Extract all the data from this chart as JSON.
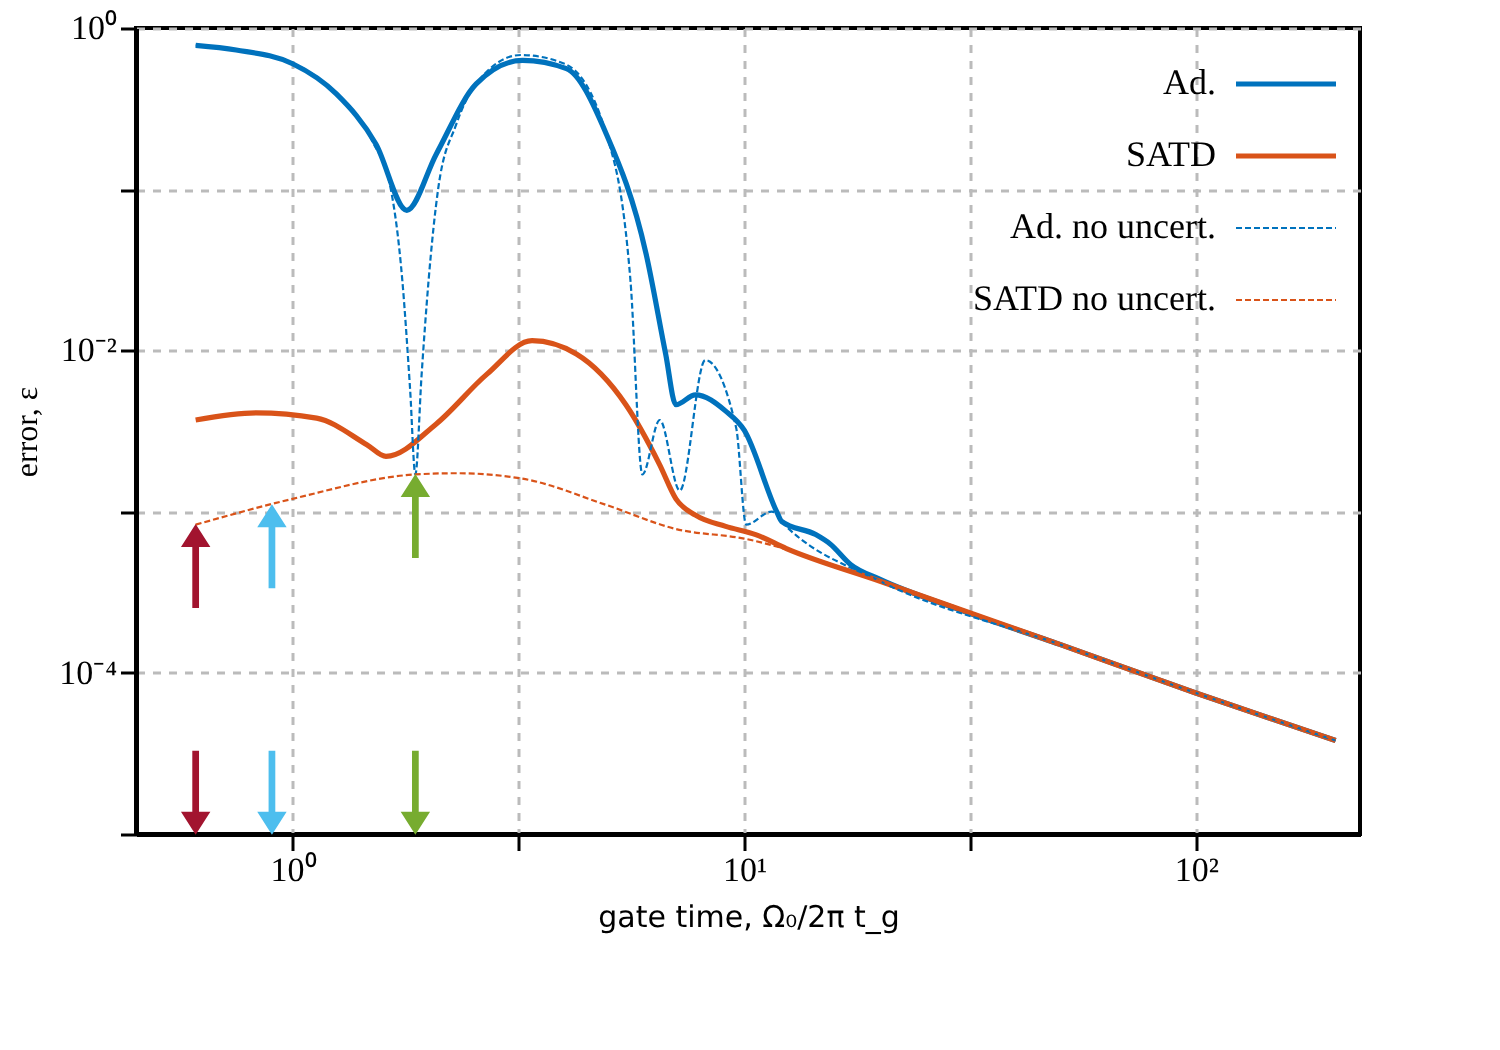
{
  "chart_data": {
    "type": "line",
    "xlabel": "gate time, Ω₀/2π t_g",
    "ylabel": "error, ε",
    "log": "xy",
    "grid": true,
    "legend": "top right",
    "xlim": [
      0.45,
      231
    ],
    "ylim": [
      1e-05,
      1
    ],
    "xticks": [
      {
        "value": 1,
        "label": "10⁰"
      },
      {
        "value": 3.1623,
        "label": null
      },
      {
        "value": 10,
        "label": "10¹"
      },
      {
        "value": 31.623,
        "label": null
      },
      {
        "value": 100,
        "label": "10²"
      }
    ],
    "yticks": [
      {
        "value": 1,
        "label": "10⁰"
      },
      {
        "value": 0.1,
        "label": null
      },
      {
        "value": 0.01,
        "label": "10⁻²"
      },
      {
        "value": 0.001,
        "label": null
      },
      {
        "value": 0.0001,
        "label": "10⁻⁴"
      },
      {
        "value": 1e-05,
        "label": null
      }
    ],
    "series": [
      {
        "name": "Ad.",
        "color": "#0072bd",
        "line_style": "solid",
        "x": [
          0.61,
          0.75,
          1,
          1.25,
          1.53,
          1.79,
          2.08,
          2.55,
          3.23,
          4.04,
          4.95,
          6.06,
          6.7,
          7.06,
          7.8,
          9.1,
          10,
          11.8,
          12.1,
          14.4,
          15.5,
          17.2,
          20,
          29.5,
          50,
          100,
          204
        ],
        "values": [
          0.78,
          0.73,
          0.6,
          0.39,
          0.19,
          0.074,
          0.165,
          0.45,
          0.63,
          0.56,
          0.22,
          0.04,
          0.0095,
          0.0046,
          0.0053,
          0.0042,
          0.0032,
          0.001,
          0.00087,
          0.00072,
          0.00063,
          0.00047,
          0.00038,
          0.00025,
          0.00015,
          7.5e-05,
          3.8e-05
        ]
      },
      {
        "name": "SATD",
        "color": "#d95319",
        "line_style": "solid",
        "x": [
          0.61,
          0.83,
          1.13,
          1.46,
          1.61,
          2.08,
          2.69,
          3.39,
          4.25,
          5.47,
          6.5,
          7.06,
          7.8,
          9.1,
          10.6,
          12.4,
          20,
          50,
          100,
          204
        ],
        "values": [
          0.0037,
          0.0041,
          0.0038,
          0.0026,
          0.0022,
          0.0035,
          0.0071,
          0.0115,
          0.0095,
          0.0046,
          0.00195,
          0.0012,
          0.00095,
          0.00081,
          0.00072,
          0.00059,
          0.00037,
          0.00015,
          7.5e-05,
          3.8e-05
        ]
      },
      {
        "name": "Ad. no uncert.",
        "color": "#0072bd",
        "line_style": "dashed",
        "x": [
          0.61,
          1,
          1.25,
          1.5,
          1.65,
          1.75,
          1.82,
          1.87,
          1.93,
          2.0,
          2.1,
          2.3,
          2.55,
          3.2,
          4.0,
          4.95,
          5.6,
          5.95,
          6.5,
          7.2,
          8.2,
          9.6,
          10.1,
          11.5,
          12.5,
          20,
          50,
          100,
          204
        ],
        "values": [
          0.78,
          0.6,
          0.39,
          0.2,
          0.1,
          0.027,
          0.0058,
          0.0017,
          0.007,
          0.027,
          0.1,
          0.25,
          0.45,
          0.68,
          0.6,
          0.22,
          0.027,
          0.0017,
          0.0037,
          0.00135,
          0.0087,
          0.0033,
          0.00083,
          0.001,
          0.00079,
          0.00037,
          0.00015,
          7.5e-05,
          3.8e-05
        ]
      },
      {
        "name": "SATD no uncert.",
        "color": "#d95319",
        "line_style": "dashed",
        "x": [
          0.61,
          1,
          1.87,
          2.31,
          3.23,
          4.95,
          7.06,
          10,
          20,
          50,
          100,
          204
        ],
        "values": [
          0.00083,
          0.0012,
          0.0017,
          0.00173,
          0.0016,
          0.0011,
          0.00078,
          0.00068,
          0.00037,
          0.00015,
          7.5e-05,
          3.85e-05
        ]
      },
      {
        "type": "scatter",
        "color": "#a2142f",
        "x": [
          0.61,
          0.61
        ],
        "values": [
          0.00046,
          1.8e-05
        ]
      },
      {
        "type": "scatter",
        "color": "#4dbeee",
        "x": [
          0.9,
          0.9
        ],
        "values": [
          0.00061,
          1.8e-05
        ]
      },
      {
        "type": "scatter",
        "color": "#77ac30",
        "x": [
          1.87,
          1.87
        ],
        "values": [
          0.00094,
          1.8e-05
        ]
      }
    ]
  }
}
